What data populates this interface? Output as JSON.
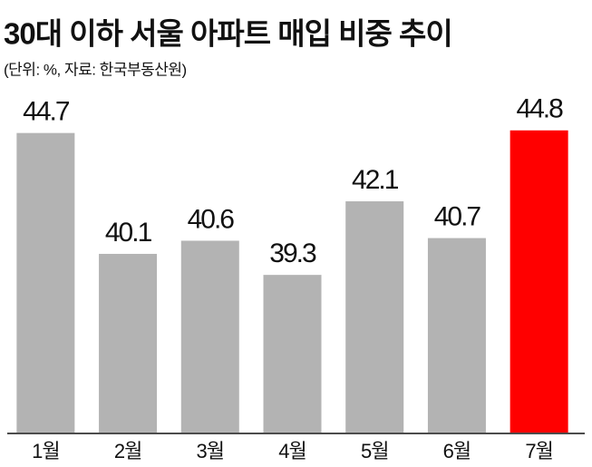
{
  "chart_data": {
    "type": "bar",
    "title": "30대 이하 서울 아파트 매입 비중 추이",
    "subtitle": "(단위: %, 자료: 한국부동산원)",
    "categories": [
      "1월",
      "2월",
      "3월",
      "4월",
      "5월",
      "6월",
      "7월"
    ],
    "values": [
      44.7,
      40.1,
      40.6,
      39.3,
      42.1,
      40.7,
      44.8
    ],
    "colors": [
      "#b3b3b3",
      "#b3b3b3",
      "#b3b3b3",
      "#b3b3b3",
      "#b3b3b3",
      "#b3b3b3",
      "#ff0000"
    ],
    "ylim": [
      33.3,
      46
    ]
  }
}
